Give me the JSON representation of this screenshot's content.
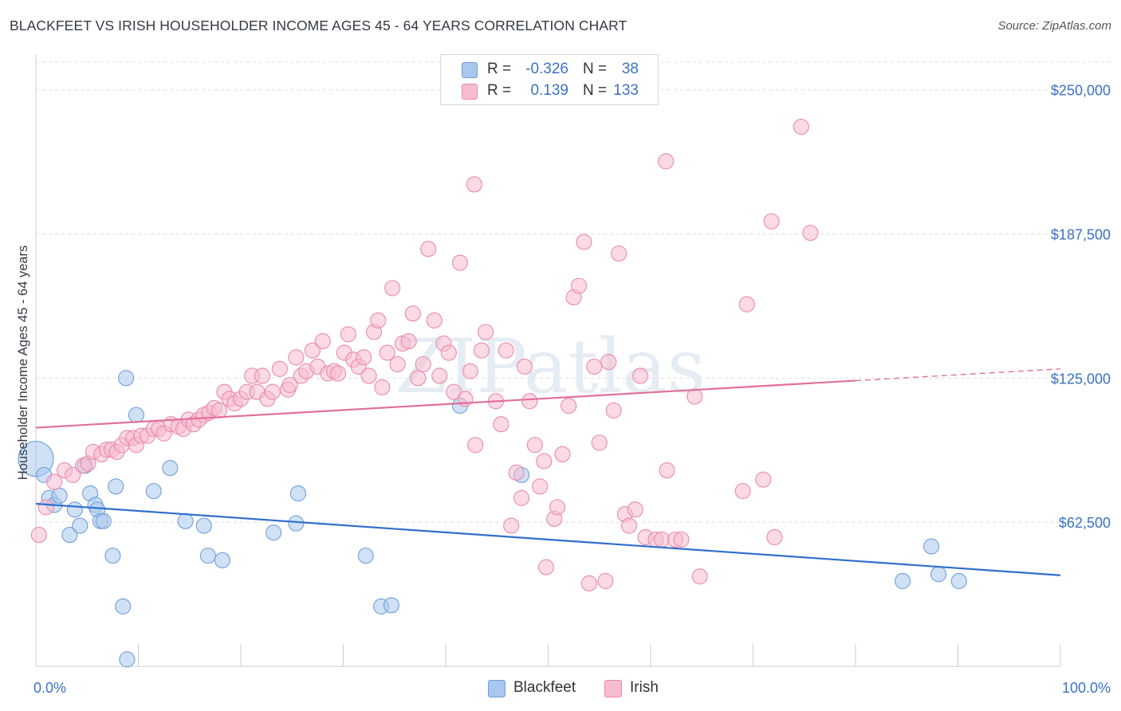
{
  "title": "BLACKFEET VS IRISH HOUSEHOLDER INCOME AGES 45 - 64 YEARS CORRELATION CHART",
  "source": "Source: ZipAtlas.com",
  "watermark": "ZIPatlas",
  "legend": {
    "rows": [
      {
        "r_label": "R =",
        "r_value": "-0.326",
        "n_label": "N =",
        "n_value": "38",
        "color": "#a9c8ef",
        "stroke": "#6f9fd8"
      },
      {
        "r_label": "R =",
        "r_value": "0.139",
        "n_label": "N =",
        "n_value": "133",
        "color": "#f7bcd0",
        "stroke": "#e98aaa"
      }
    ]
  },
  "bottom_legend": [
    {
      "label": "Blackfeet",
      "color": "#a9c8ef",
      "stroke": "#6f9fd8"
    },
    {
      "label": "Irish",
      "color": "#f7bcd0",
      "stroke": "#e98aaa"
    }
  ],
  "chart_data": {
    "type": "scatter",
    "title": "BLACKFEET VS IRISH HOUSEHOLDER INCOME AGES 45 - 64 YEARS CORRELATION CHART",
    "xlabel": "",
    "ylabel": "Householder Income Ages 45 - 64 years",
    "xlim": [
      0,
      100
    ],
    "ylim": [
      0,
      262000
    ],
    "x_tick_labels": [
      "0.0%",
      "100.0%"
    ],
    "y_ticks": [
      62500,
      125000,
      187500,
      250000
    ],
    "y_tick_labels": [
      "$62,500",
      "$125,000",
      "$187,500",
      "$250,000"
    ],
    "grid": "horizontal-dashed",
    "legend_position": "top-center",
    "series": [
      {
        "name": "Blackfeet",
        "color": "#a9c8ef",
        "stroke": "#6f9fd8",
        "line_color": "#2f6fcc",
        "trend": {
          "x": [
            0,
            100
          ],
          "y": [
            70500,
            39500
          ],
          "dashed_from": null
        },
        "points": [
          [
            0.0,
            90000,
            3
          ],
          [
            0.8,
            83000,
            1
          ],
          [
            1.3,
            73000,
            1
          ],
          [
            1.8,
            70000,
            1
          ],
          [
            2.3,
            74000,
            1
          ],
          [
            3.3,
            57000,
            1
          ],
          [
            3.8,
            68000,
            1
          ],
          [
            4.3,
            61000,
            1
          ],
          [
            4.8,
            87000,
            1
          ],
          [
            5.3,
            75000,
            1
          ],
          [
            5.8,
            70000,
            1
          ],
          [
            6.0,
            68000,
            1
          ],
          [
            6.3,
            63000,
            1
          ],
          [
            6.6,
            63000,
            1
          ],
          [
            7.5,
            48000,
            1
          ],
          [
            7.8,
            78000,
            1
          ],
          [
            8.5,
            26000,
            1
          ],
          [
            8.9,
            3000,
            1
          ],
          [
            8.8,
            125000,
            1
          ],
          [
            9.8,
            109000,
            1
          ],
          [
            11.5,
            76000,
            1
          ],
          [
            13.1,
            86000,
            1
          ],
          [
            14.6,
            63000,
            1
          ],
          [
            16.4,
            61000,
            1
          ],
          [
            16.8,
            48000,
            1
          ],
          [
            18.2,
            46000,
            1
          ],
          [
            23.2,
            58000,
            1
          ],
          [
            25.4,
            62000,
            1
          ],
          [
            25.6,
            75000,
            1
          ],
          [
            32.2,
            48000,
            1
          ],
          [
            33.7,
            26000,
            1
          ],
          [
            34.7,
            26500,
            1
          ],
          [
            41.4,
            113000,
            1
          ],
          [
            47.4,
            83000,
            1
          ],
          [
            84.6,
            37000,
            1
          ],
          [
            87.4,
            52000,
            1
          ],
          [
            88.1,
            40000,
            1
          ],
          [
            90.1,
            37000,
            1
          ]
        ]
      },
      {
        "name": "Irish",
        "color": "#f7bcd0",
        "stroke": "#e98aaa",
        "line_color": "#e0709a",
        "trend": {
          "x": [
            0,
            100
          ],
          "y": [
            103500,
            129000
          ],
          "dashed_from": 80
        },
        "points": [
          [
            0.3,
            57000
          ],
          [
            1.0,
            69000
          ],
          [
            1.8,
            80000
          ],
          [
            2.8,
            85000
          ],
          [
            3.6,
            83000
          ],
          [
            4.6,
            87000
          ],
          [
            5.1,
            88000
          ],
          [
            5.6,
            93000
          ],
          [
            6.4,
            92000
          ],
          [
            6.9,
            94000
          ],
          [
            7.4,
            94000
          ],
          [
            7.9,
            93000
          ],
          [
            8.4,
            96000
          ],
          [
            8.9,
            99000
          ],
          [
            9.5,
            99000
          ],
          [
            9.8,
            96000
          ],
          [
            10.3,
            100000
          ],
          [
            10.9,
            100000
          ],
          [
            11.5,
            103000
          ],
          [
            12.0,
            103000
          ],
          [
            12.5,
            101000
          ],
          [
            13.2,
            105000
          ],
          [
            13.9,
            104000
          ],
          [
            14.4,
            103000
          ],
          [
            14.9,
            107000
          ],
          [
            15.4,
            105000
          ],
          [
            15.9,
            107000
          ],
          [
            16.4,
            109000
          ],
          [
            16.9,
            110000
          ],
          [
            17.4,
            112000
          ],
          [
            17.9,
            111000
          ],
          [
            18.4,
            119000
          ],
          [
            18.9,
            116000
          ],
          [
            19.4,
            114000
          ],
          [
            20.0,
            116000
          ],
          [
            20.6,
            119000
          ],
          [
            21.1,
            126000
          ],
          [
            21.6,
            119000
          ],
          [
            22.1,
            126000
          ],
          [
            22.6,
            116000
          ],
          [
            23.1,
            119000
          ],
          [
            23.8,
            129000
          ],
          [
            24.6,
            120000
          ],
          [
            24.8,
            122000
          ],
          [
            25.4,
            134000
          ],
          [
            25.9,
            126000
          ],
          [
            26.4,
            128000
          ],
          [
            27.0,
            137000
          ],
          [
            27.5,
            130000
          ],
          [
            28.0,
            141000
          ],
          [
            28.5,
            127000
          ],
          [
            29.1,
            128000
          ],
          [
            29.5,
            127000
          ],
          [
            30.1,
            136000
          ],
          [
            30.5,
            144000
          ],
          [
            31.0,
            133000
          ],
          [
            31.5,
            130000
          ],
          [
            32.0,
            134000
          ],
          [
            32.5,
            126000
          ],
          [
            33.0,
            145000
          ],
          [
            33.4,
            150000
          ],
          [
            33.8,
            121000
          ],
          [
            34.3,
            136000
          ],
          [
            34.8,
            164000
          ],
          [
            35.3,
            131000
          ],
          [
            35.8,
            140000
          ],
          [
            36.4,
            141000
          ],
          [
            36.8,
            153000
          ],
          [
            37.3,
            125000
          ],
          [
            37.8,
            131000
          ],
          [
            38.3,
            181000
          ],
          [
            38.9,
            150000
          ],
          [
            39.4,
            126000
          ],
          [
            39.8,
            140000
          ],
          [
            40.3,
            136000
          ],
          [
            40.8,
            119000
          ],
          [
            41.4,
            175000
          ],
          [
            41.9,
            116000
          ],
          [
            42.4,
            128000
          ],
          [
            42.8,
            209000
          ],
          [
            42.9,
            96000
          ],
          [
            43.5,
            137000
          ],
          [
            43.9,
            145000
          ],
          [
            44.9,
            115000
          ],
          [
            45.4,
            105000
          ],
          [
            45.9,
            137000
          ],
          [
            46.4,
            61000
          ],
          [
            46.9,
            84000
          ],
          [
            47.4,
            73000
          ],
          [
            47.7,
            130000
          ],
          [
            48.2,
            115000
          ],
          [
            48.7,
            96000
          ],
          [
            49.2,
            78000
          ],
          [
            49.6,
            89000
          ],
          [
            49.8,
            43000
          ],
          [
            50.6,
            64000
          ],
          [
            50.9,
            69000
          ],
          [
            51.4,
            92000
          ],
          [
            52.0,
            113000
          ],
          [
            52.5,
            160000
          ],
          [
            53.0,
            165000
          ],
          [
            53.5,
            184000
          ],
          [
            54.0,
            36000
          ],
          [
            54.5,
            130000
          ],
          [
            55.0,
            97000
          ],
          [
            55.6,
            37000
          ],
          [
            55.9,
            132000
          ],
          [
            56.4,
            111000
          ],
          [
            56.9,
            179000
          ],
          [
            57.5,
            66000
          ],
          [
            57.9,
            61000
          ],
          [
            58.5,
            68000
          ],
          [
            59.0,
            126000
          ],
          [
            59.5,
            56000
          ],
          [
            60.5,
            55000
          ],
          [
            61.1,
            55000
          ],
          [
            61.5,
            219000
          ],
          [
            61.6,
            85000
          ],
          [
            62.4,
            55000
          ],
          [
            64.3,
            117000
          ],
          [
            64.8,
            39000
          ],
          [
            69.0,
            76000
          ],
          [
            69.4,
            157000
          ],
          [
            71.0,
            81000
          ],
          [
            71.8,
            193000
          ],
          [
            72.1,
            56000
          ],
          [
            74.7,
            234000
          ],
          [
            75.6,
            188000
          ],
          [
            63.0,
            55000
          ]
        ]
      }
    ]
  }
}
